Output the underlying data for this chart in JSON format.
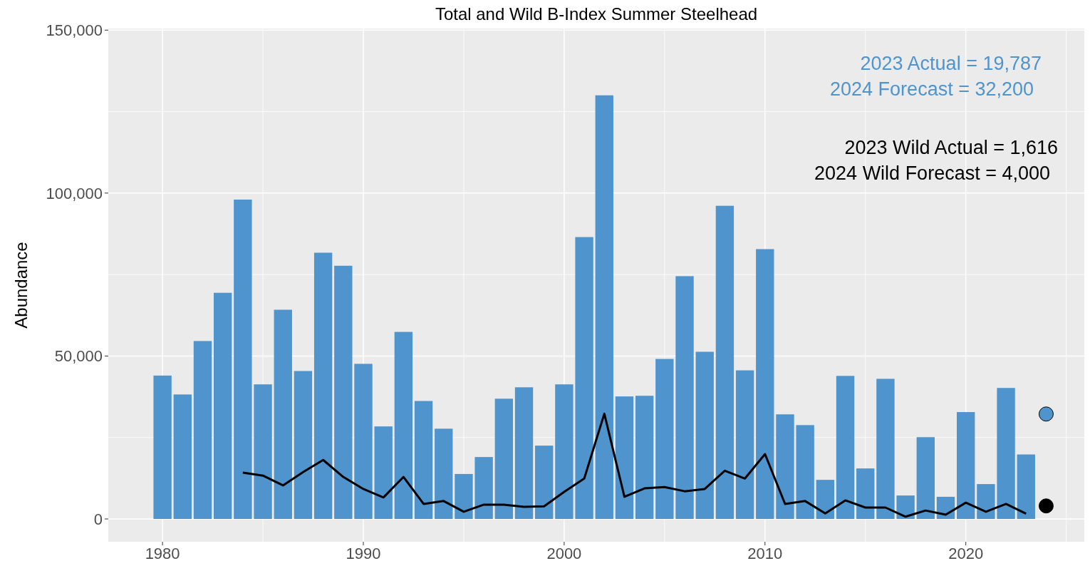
{
  "chart_data": {
    "type": "bar",
    "title": "Total and Wild B-Index Summer Steelhead",
    "ylabel": "Abundance",
    "x": [
      1980,
      1981,
      1982,
      1983,
      1984,
      1985,
      1986,
      1987,
      1988,
      1989,
      1990,
      1991,
      1992,
      1993,
      1994,
      1995,
      1996,
      1997,
      1998,
      1999,
      2000,
      2001,
      2002,
      2003,
      2004,
      2005,
      2006,
      2007,
      2008,
      2009,
      2010,
      2011,
      2012,
      2013,
      2014,
      2015,
      2016,
      2017,
      2018,
      2019,
      2020,
      2021,
      2022,
      2023
    ],
    "series": [
      {
        "color": "#4f94cd",
        "values": [
          44000,
          38200,
          54600,
          69400,
          98000,
          41300,
          64200,
          45400,
          81700,
          77700,
          47600,
          28400,
          57400,
          36200,
          27700,
          13800,
          19000,
          36900,
          40400,
          22500,
          41300,
          86500,
          130000,
          37600,
          37800,
          49100,
          74500,
          51300,
          96100,
          45600,
          82800,
          32100,
          28800,
          12000,
          43900,
          15500,
          43000,
          7200,
          25100,
          6800,
          32800,
          10700,
          40200,
          19787
        ]
      },
      {
        "type": "line",
        "color": "#000000",
        "x": [
          1984,
          1985,
          1986,
          1987,
          1988,
          1989,
          1990,
          1991,
          1992,
          1993,
          1994,
          1995,
          1996,
          1997,
          1998,
          1999,
          2000,
          2001,
          2002,
          2003,
          2004,
          2005,
          2006,
          2007,
          2008,
          2009,
          2010,
          2011,
          2012,
          2013,
          2014,
          2015,
          2016,
          2017,
          2018,
          2019,
          2020,
          2021,
          2022,
          2023
        ],
        "values": [
          14200,
          13300,
          10300,
          14400,
          18100,
          12900,
          9200,
          6600,
          12900,
          4600,
          5500,
          2200,
          4400,
          4400,
          3700,
          3900,
          8300,
          12400,
          32300,
          6800,
          9400,
          9800,
          8500,
          9200,
          14800,
          12400,
          19900,
          4600,
          5500,
          1700,
          5700,
          3500,
          3500,
          700,
          2600,
          1300,
          5000,
          2200,
          4600,
          1616
        ]
      },
      {
        "type": "scatter",
        "marker": "circle",
        "color": "#4f94cd",
        "x": [
          2024
        ],
        "values": [
          32200
        ]
      },
      {
        "type": "scatter",
        "marker": "circle",
        "color": "#000000",
        "x": [
          2024
        ],
        "values": [
          4000
        ]
      }
    ],
    "annotations": [
      "2023 Actual = 19,787",
      "2024 Forecast = 32,200",
      "2023 Wild Actual = 1,616",
      "2024 Wild Forecast = 4,000"
    ],
    "xlim": [
      1977.3,
      2025.9
    ],
    "ylim": [
      -7000,
      150500
    ],
    "xticks": [
      1980,
      {
        "value": 1985,
        "label": null
      },
      1990,
      {
        "value": 1995,
        "label": null
      },
      2000,
      {
        "value": 2005,
        "label": null
      },
      2010,
      {
        "value": 2015,
        "label": null
      },
      2020,
      {
        "value": 2025,
        "label": null
      }
    ],
    "yticks": [
      {
        "value": 0,
        "label": "0"
      },
      {
        "value": 25000,
        "label": null
      },
      {
        "value": 50000,
        "label": "50,000"
      },
      {
        "value": 75000,
        "label": null
      },
      {
        "value": 100000,
        "label": "100,000"
      },
      {
        "value": 125000,
        "label": null
      },
      {
        "value": 150000,
        "label": "150,000"
      }
    ],
    "grid": true,
    "line_style": "solid"
  }
}
